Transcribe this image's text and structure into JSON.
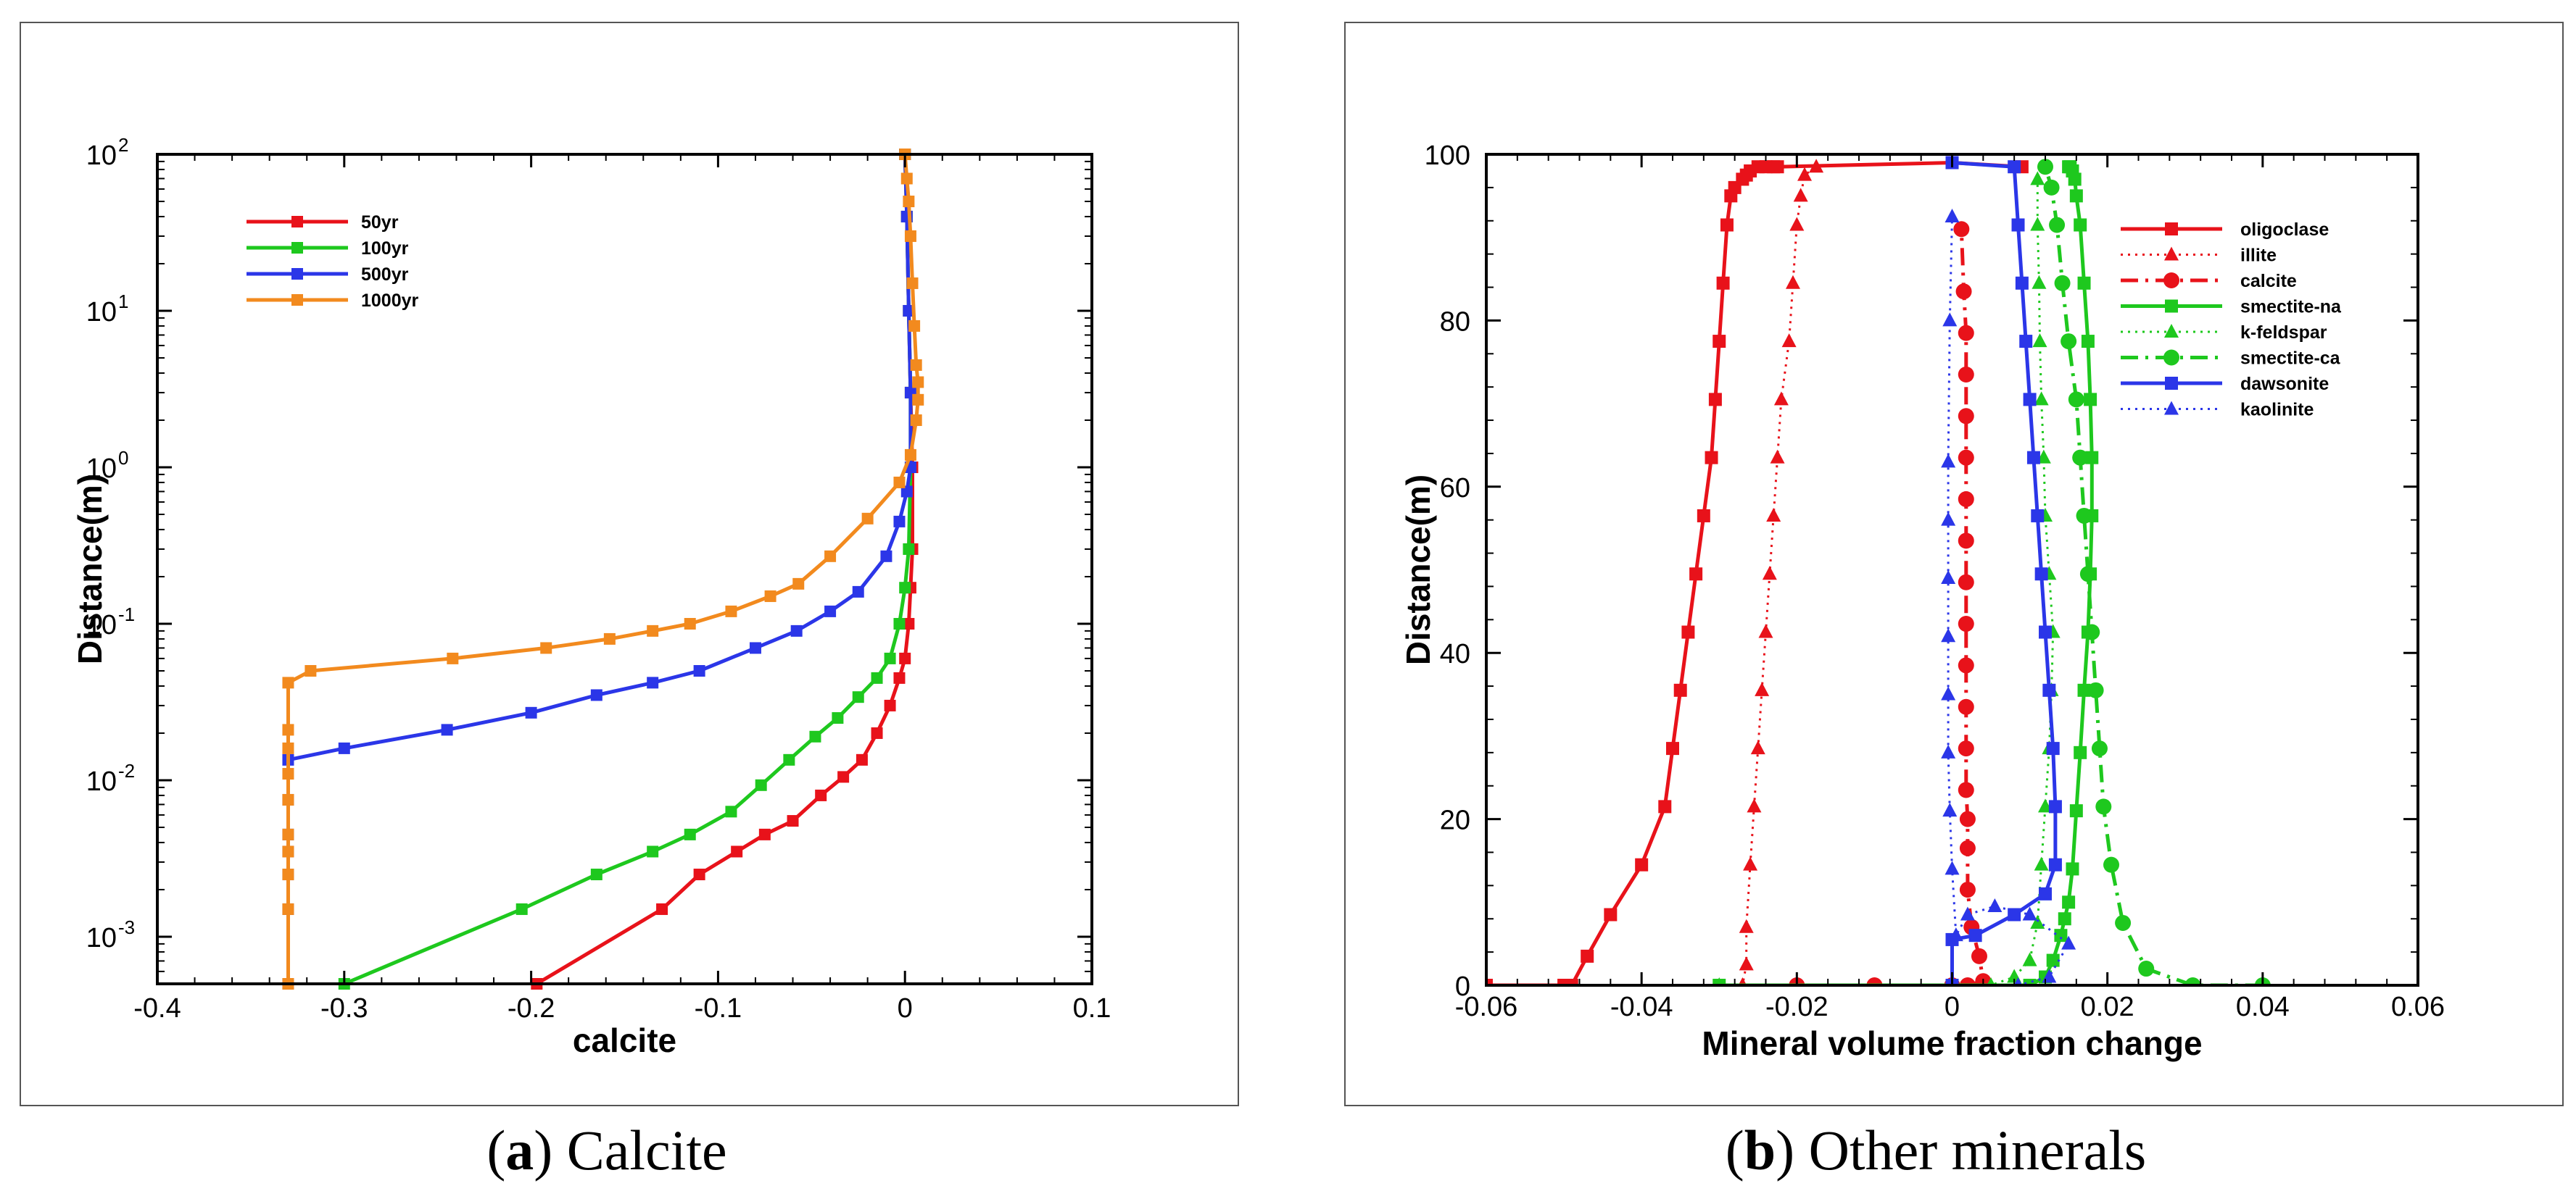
{
  "chart_data": [
    {
      "type": "line",
      "panel": "a",
      "caption_letter": "a",
      "caption_text": "Calcite",
      "xlabel": "calcite",
      "ylabel": "Distance(m)",
      "xlim": [
        -0.4,
        0.1
      ],
      "ylim": [
        0.0005,
        100
      ],
      "yscale": "log",
      "xticks": [
        "-0.4",
        "-0.3",
        "-0.2",
        "-0.1",
        "0",
        "0.1"
      ],
      "ytick_base": "10",
      "ytick_exponents": [
        "-3",
        "-2",
        "-1",
        "0",
        "1",
        "2"
      ],
      "legend_position": "top-left",
      "series": [
        {
          "name": "50yr",
          "color": "#e8121a",
          "x": [
            -0.197,
            -0.13,
            -0.11,
            -0.09,
            -0.075,
            -0.06,
            -0.045,
            -0.033,
            -0.023,
            -0.015,
            -0.008,
            -0.003,
            0,
            0.002,
            0.003,
            0.004,
            0.004,
            0.003,
            0.002,
            0.001,
            0
          ],
          "y": [
            0.0005,
            0.0015,
            0.0025,
            0.0035,
            0.0045,
            0.0055,
            0.008,
            0.0105,
            0.0135,
            0.02,
            0.03,
            0.045,
            0.06,
            0.1,
            0.17,
            0.3,
            1,
            3,
            10,
            40,
            100
          ]
        },
        {
          "name": "100yr",
          "color": "#1ec81e",
          "x": [
            -0.3,
            -0.205,
            -0.165,
            -0.135,
            -0.115,
            -0.093,
            -0.077,
            -0.062,
            -0.048,
            -0.036,
            -0.025,
            -0.015,
            -0.008,
            -0.003,
            0,
            0.002,
            0.003,
            0.003,
            0.002,
            0.001,
            0
          ],
          "y": [
            0.0005,
            0.0015,
            0.0025,
            0.0035,
            0.0045,
            0.0063,
            0.0093,
            0.0135,
            0.019,
            0.025,
            0.034,
            0.045,
            0.06,
            0.1,
            0.17,
            0.3,
            1,
            3,
            10,
            40,
            100
          ]
        },
        {
          "name": "500yr",
          "color": "#2b36e8",
          "x": [
            -0.33,
            -0.33,
            -0.33,
            -0.33,
            -0.33,
            -0.33,
            -0.33,
            -0.3,
            -0.245,
            -0.2,
            -0.165,
            -0.135,
            -0.11,
            -0.08,
            -0.058,
            -0.04,
            -0.025,
            -0.01,
            -0.003,
            0.001,
            0.003,
            0.003,
            0.002,
            0.001,
            0
          ],
          "y": [
            0.0005,
            0.0015,
            0.0025,
            0.0035,
            0.0045,
            0.0075,
            0.0135,
            0.016,
            0.021,
            0.027,
            0.035,
            0.042,
            0.05,
            0.07,
            0.09,
            0.12,
            0.16,
            0.27,
            0.45,
            0.7,
            1,
            3,
            10,
            40,
            100
          ]
        },
        {
          "name": "1000yr",
          "color": "#f28a1e",
          "x": [
            -0.33,
            -0.33,
            -0.33,
            -0.33,
            -0.33,
            -0.33,
            -0.33,
            -0.33,
            -0.33,
            -0.33,
            -0.318,
            -0.242,
            -0.192,
            -0.158,
            -0.135,
            -0.115,
            -0.093,
            -0.072,
            -0.057,
            -0.04,
            -0.02,
            -0.003,
            0.003,
            0.006,
            0.007,
            0.007,
            0.006,
            0.005,
            0.004,
            0.003,
            0.002,
            0.001,
            0
          ],
          "y": [
            0.0005,
            0.0015,
            0.0025,
            0.0035,
            0.0045,
            0.0075,
            0.011,
            0.016,
            0.021,
            0.042,
            0.05,
            0.06,
            0.07,
            0.08,
            0.09,
            0.1,
            0.12,
            0.15,
            0.18,
            0.27,
            0.47,
            0.8,
            1.2,
            2,
            2.7,
            3.5,
            4.5,
            8,
            15,
            30,
            50,
            70,
            100
          ]
        }
      ]
    },
    {
      "type": "line",
      "panel": "b",
      "caption_letter": "b",
      "caption_text": "Other minerals",
      "xlabel": "Mineral volume fraction change",
      "ylabel": "Distance(m)",
      "xlim": [
        -0.06,
        0.06
      ],
      "ylim": [
        0,
        100
      ],
      "xticks": [
        "-0.06",
        "-0.04",
        "-0.02",
        "0",
        "0.02",
        "0.04",
        "0.06"
      ],
      "yticks": [
        "0",
        "20",
        "40",
        "60",
        "80",
        "100"
      ],
      "legend_position": "top-right",
      "series": [
        {
          "name": "oligoclase",
          "color": "#e8121a",
          "line": "solid",
          "marker": "square",
          "x": [
            -0.06,
            -0.05,
            -0.049,
            -0.047,
            -0.044,
            -0.04,
            -0.037,
            -0.036,
            -0.035,
            -0.034,
            -0.033,
            -0.032,
            -0.031,
            -0.0305,
            -0.03,
            -0.0295,
            -0.029,
            -0.0285,
            -0.028,
            -0.027,
            -0.0265,
            -0.026,
            -0.025,
            -0.024,
            -0.023,
            -0.0225,
            0.0,
            0.009
          ],
          "y": [
            0,
            0,
            0,
            3.5,
            8.5,
            14.5,
            21.5,
            28.5,
            35.5,
            42.5,
            49.5,
            56.5,
            63.5,
            70.5,
            77.5,
            84.5,
            91.5,
            95,
            96,
            97,
            97.5,
            98,
            98.5,
            98.5,
            98.5,
            98.5,
            99,
            98.5
          ]
        },
        {
          "name": "illite",
          "color": "#e8121a",
          "line": "dotted",
          "marker": "triangle",
          "x": [
            -0.06,
            -0.027,
            -0.0265,
            -0.0265,
            -0.026,
            -0.0255,
            -0.025,
            -0.0245,
            -0.024,
            -0.0235,
            -0.023,
            -0.0225,
            -0.022,
            -0.021,
            -0.0205,
            -0.02,
            -0.0195,
            -0.019,
            -0.0175
          ],
          "y": [
            0,
            0,
            2.5,
            7,
            14.5,
            21.5,
            28.5,
            35.5,
            42.5,
            49.5,
            56.5,
            63.5,
            70.5,
            77.5,
            84.5,
            91.5,
            95,
            97.5,
            98.5
          ]
        },
        {
          "name": "calcite",
          "color": "#e8121a",
          "line": "dashdot",
          "marker": "circle",
          "x": [
            -0.02,
            -0.01,
            0,
            0.002,
            0.004,
            0.0035,
            0.0025,
            0.002,
            0.002,
            0.002,
            0.0018,
            0.0018,
            0.0018,
            0.0018,
            0.0018,
            0.0018,
            0.0018,
            0.0018,
            0.0018,
            0.0018,
            0.0018,
            0.0018,
            0.0015,
            0.0012
          ],
          "y": [
            0,
            0,
            0,
            0,
            0.5,
            3.5,
            7,
            11.5,
            16.5,
            20,
            23.5,
            28.5,
            33.5,
            38.5,
            43.5,
            48.5,
            53.5,
            58.5,
            63.5,
            68.5,
            73.5,
            78.5,
            83.5,
            91
          ]
        },
        {
          "name": "smectite-na",
          "color": "#1ec81e",
          "line": "solid",
          "marker": "square",
          "x": [
            -0.03,
            0.01,
            0.012,
            0.013,
            0.014,
            0.0145,
            0.015,
            0.0155,
            0.016,
            0.0165,
            0.017,
            0.0175,
            0.0178,
            0.018,
            0.018,
            0.0178,
            0.0175,
            0.017,
            0.0165,
            0.016,
            0.0158,
            0.0155,
            0.0152,
            0.015
          ],
          "y": [
            0,
            0,
            1,
            3,
            6,
            8,
            10,
            14,
            21,
            28,
            35.5,
            42.5,
            49.5,
            56.5,
            63.5,
            70.5,
            77.5,
            84.5,
            91.5,
            95,
            97,
            98,
            98.5,
            98.5
          ]
        },
        {
          "name": "k-feldspar",
          "color": "#1ec81e",
          "line": "dotted",
          "marker": "triangle",
          "x": [
            -0.03,
            0.005,
            0.008,
            0.01,
            0.011,
            0.0115,
            0.012,
            0.0125,
            0.0128,
            0.013,
            0.0125,
            0.012,
            0.0118,
            0.0115,
            0.0113,
            0.0112,
            0.011,
            0.011
          ],
          "y": [
            0,
            0,
            1,
            3,
            7.5,
            14.5,
            21.5,
            28.5,
            35.5,
            42.5,
            49.5,
            56.5,
            63.5,
            70.5,
            77.5,
            84.5,
            91.5,
            97
          ]
        },
        {
          "name": "smectite-ca",
          "color": "#1ec81e",
          "line": "dashdot",
          "marker": "circle",
          "x": [
            0.04,
            0.031,
            0.025,
            0.022,
            0.0205,
            0.0195,
            0.019,
            0.0185,
            0.018,
            0.0175,
            0.017,
            0.0165,
            0.016,
            0.015,
            0.0142,
            0.0135,
            0.0128,
            0.012
          ],
          "y": [
            0,
            0,
            2,
            7.5,
            14.5,
            21.5,
            28.5,
            35.5,
            42.5,
            49.5,
            56.5,
            63.5,
            70.5,
            77.5,
            84.5,
            91.5,
            96,
            98.5
          ]
        },
        {
          "name": "dawsonite",
          "color": "#2b36e8",
          "line": "solid",
          "marker": "square",
          "x": [
            0,
            0,
            0.003,
            0.008,
            0.012,
            0.0133,
            0.0133,
            0.013,
            0.0125,
            0.012,
            0.0115,
            0.011,
            0.0105,
            0.01,
            0.0095,
            0.009,
            0.0085,
            0.008,
            0.0
          ],
          "y": [
            0,
            5.5,
            6,
            8.5,
            11,
            14.5,
            21.5,
            28.5,
            35.5,
            42.5,
            49.5,
            56.5,
            63.5,
            70.5,
            77.5,
            84.5,
            91.5,
            98.5,
            99
          ]
        },
        {
          "name": "kaolinite",
          "color": "#2b36e8",
          "line": "dotted",
          "marker": "triangle",
          "x": [
            0,
            0.0085,
            0.0125,
            0.015,
            0.01,
            0.0055,
            0.002,
            0.0005,
            0.0,
            -0.0003,
            -0.0005,
            -0.0005,
            -0.0005,
            -0.0005,
            -0.0005,
            -0.0005,
            -0.0003,
            0.0
          ],
          "y": [
            0,
            0,
            1,
            5,
            8.5,
            9.5,
            8.5,
            6,
            14,
            21,
            28,
            35,
            42,
            49,
            56,
            63,
            80,
            92.5
          ]
        }
      ]
    }
  ]
}
